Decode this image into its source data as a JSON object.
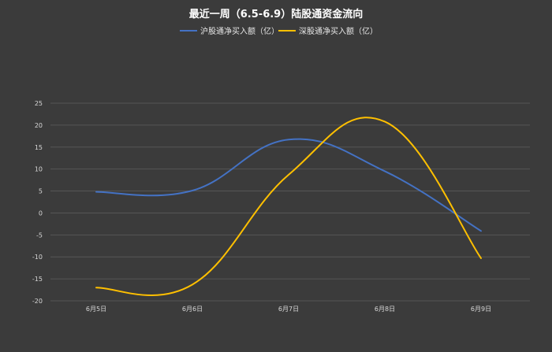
{
  "chart_data": {
    "type": "line",
    "title": "最近一周（6.5-6.9）陆股通资金流向",
    "xlabel": "",
    "ylabel": "",
    "categories": [
      "6月5日",
      "6月6日",
      "6月7日",
      "6月8日",
      "6月9日"
    ],
    "ylim": [
      -20,
      25
    ],
    "yticks": [
      25,
      20,
      15,
      10,
      5,
      0,
      -5,
      -10,
      -15,
      -20
    ],
    "grid": true,
    "legend_position": "top",
    "smooth": true,
    "series": [
      {
        "name": "沪股通净买入额（亿）",
        "color": "#4472c4",
        "values": [
          4.8,
          5.1,
          16.7,
          9.5,
          -4.1
        ]
      },
      {
        "name": "深股通净买入额（亿）",
        "color": "#ffc000",
        "values": [
          -17.0,
          -16.3,
          8.7,
          20.8,
          -10.3
        ]
      }
    ]
  }
}
